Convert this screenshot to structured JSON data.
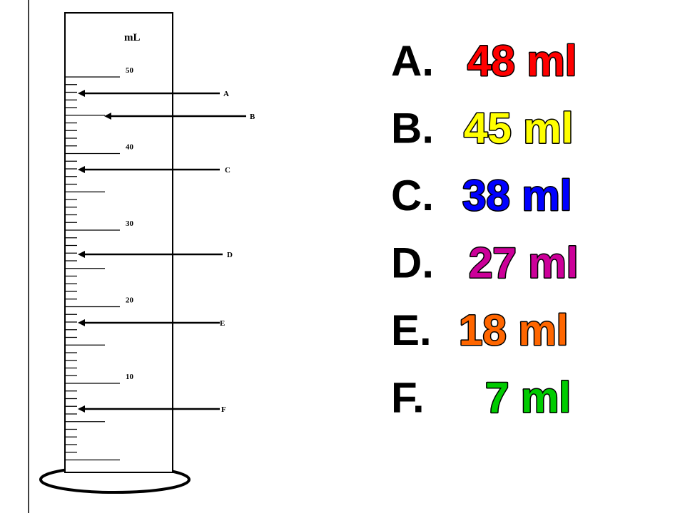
{
  "cylinder": {
    "unit": "mL",
    "scale_labels": [
      "50",
      "40",
      "30",
      "20",
      "10"
    ],
    "arrows": [
      "A",
      "B",
      "C",
      "D",
      "E",
      "F"
    ]
  },
  "answers": [
    {
      "letter": "A.",
      "value": "48 ml",
      "color": "#ff0000"
    },
    {
      "letter": "B.",
      "value": "45 ml",
      "color": "#ffff00"
    },
    {
      "letter": "C.",
      "value": "38 ml",
      "color": "#0000ff"
    },
    {
      "letter": "D.",
      "value": "27 ml",
      "color": "#cc0099"
    },
    {
      "letter": "E.",
      "value": "18 ml",
      "color": "#ff6600"
    },
    {
      "letter": "F.",
      "value": "7 ml",
      "color": "#00cc00"
    }
  ]
}
